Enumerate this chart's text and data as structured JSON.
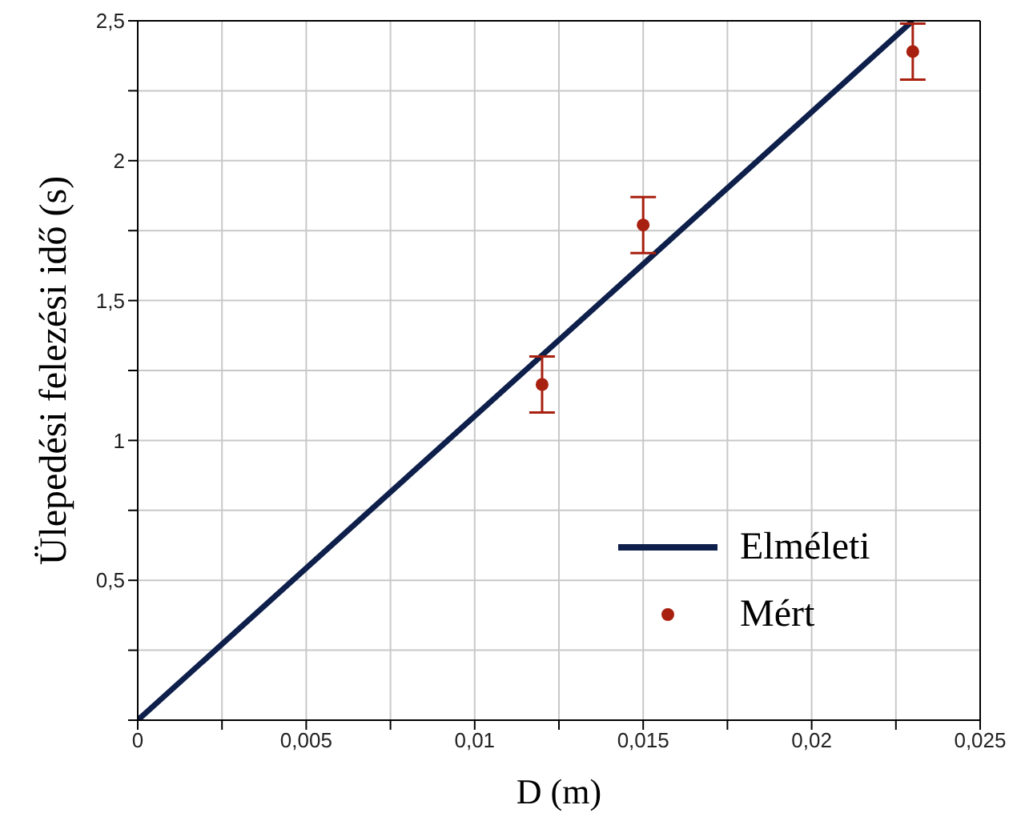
{
  "chart_data": {
    "type": "line",
    "xlabel": "D (m)",
    "ylabel": "Ülepedési felezési idő (s)",
    "xlim": [
      0,
      0.025
    ],
    "ylim": [
      0,
      2.5
    ],
    "xticks": [
      {
        "value": 0,
        "label": "0"
      },
      {
        "value": 0.0025,
        "label": null
      },
      {
        "value": 0.005,
        "label": "0,005"
      },
      {
        "value": 0.0075,
        "label": null
      },
      {
        "value": 0.01,
        "label": "0,01"
      },
      {
        "value": 0.0125,
        "label": null
      },
      {
        "value": 0.015,
        "label": "0,015"
      },
      {
        "value": 0.0175,
        "label": null
      },
      {
        "value": 0.02,
        "label": "0,02"
      },
      {
        "value": 0.0225,
        "label": null
      },
      {
        "value": 0.025,
        "label": "0,025"
      }
    ],
    "yticks": [
      {
        "value": 0,
        "label": null
      },
      {
        "value": 0.25,
        "label": null
      },
      {
        "value": 0.5,
        "label": "0,5"
      },
      {
        "value": 0.75,
        "label": null
      },
      {
        "value": 1,
        "label": "1"
      },
      {
        "value": 1.25,
        "label": null
      },
      {
        "value": 1.5,
        "label": "1,5"
      },
      {
        "value": 1.75,
        "label": null
      },
      {
        "value": 2,
        "label": "2"
      },
      {
        "value": 2.25,
        "label": null
      },
      {
        "value": 2.5,
        "label": "2,5"
      }
    ],
    "grid": true,
    "legend": "bottom right",
    "series": [
      {
        "name": "Elméleti",
        "color": "#0d1f4a",
        "marker": "none",
        "line_style": "solid",
        "x": [
          0,
          0.023
        ],
        "values": [
          0,
          2.5
        ]
      },
      {
        "name": "Mért",
        "type": "scatter",
        "color": "#a8200f",
        "marker": "circle",
        "x": [
          0.012,
          0.015,
          0.023
        ],
        "values": [
          1.2,
          1.77,
          2.39
        ],
        "errors": [
          0.1,
          0.1,
          0.1
        ]
      }
    ]
  }
}
